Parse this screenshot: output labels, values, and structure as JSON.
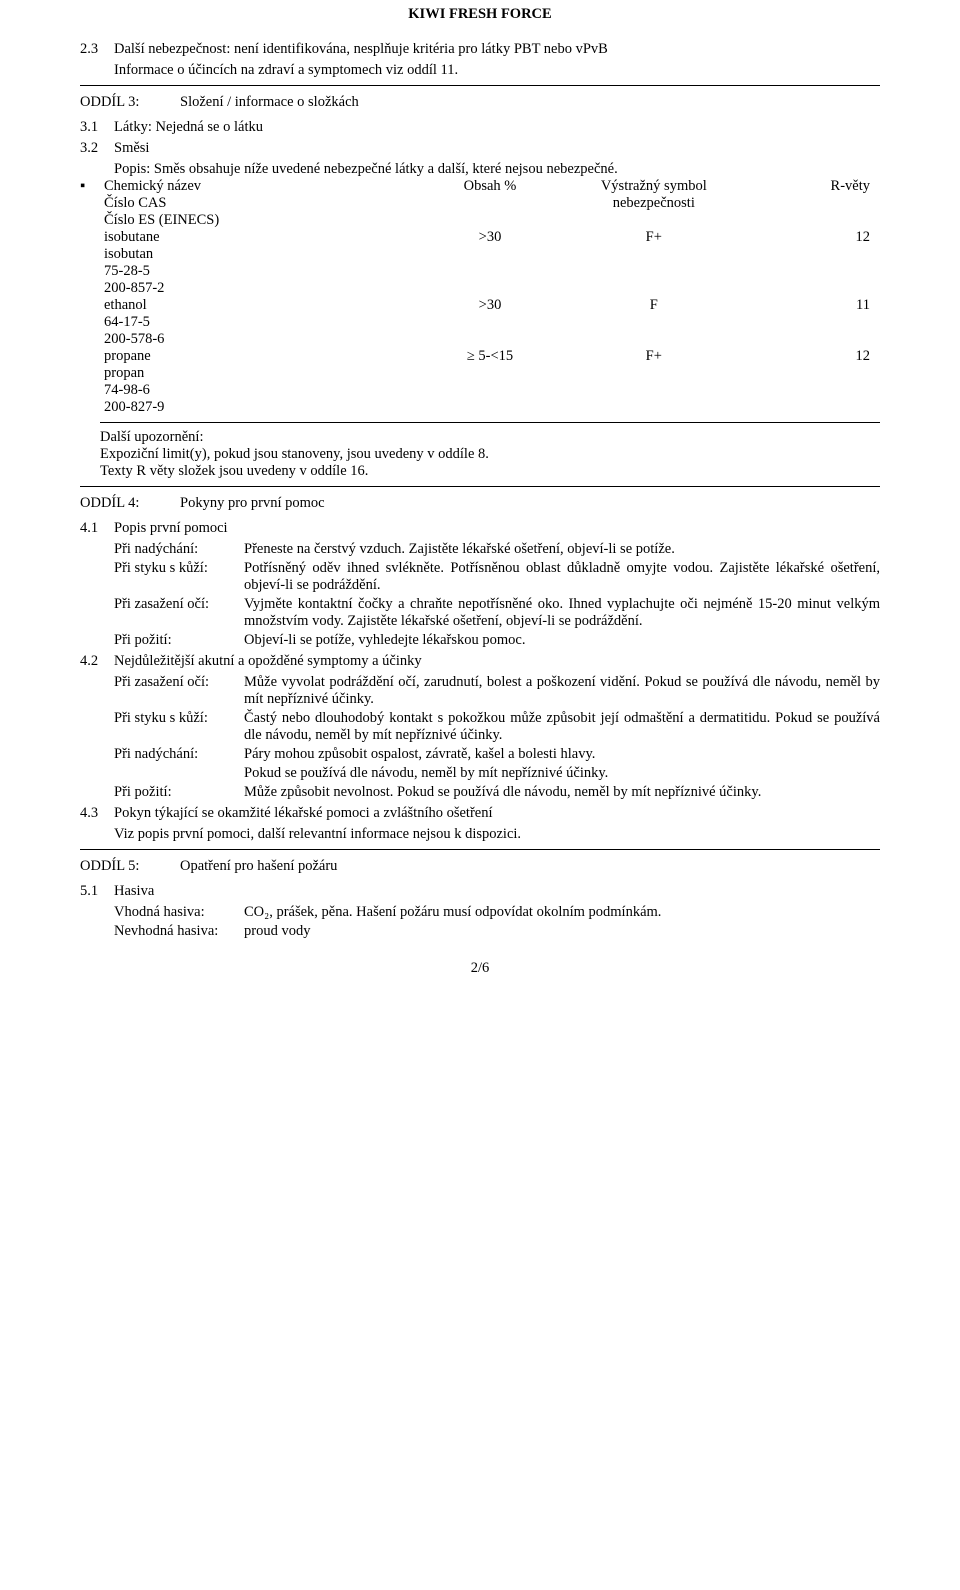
{
  "title": "KIWI FRESH FORCE",
  "s23_num": "2.3",
  "s23_text": "Další nebezpečnost: není identifikována, nesplňuje kritéria pro látky PBT nebo vPvB",
  "s23_sub": "Informace o účincích na zdraví a symptomech viz oddíl 11.",
  "oddil3_label": "ODDÍL 3:",
  "oddil3_title": "Složení / informace o složkách",
  "s31_num": "3.1",
  "s31_text": "Látky: Nejedná se o látku",
  "s32_num": "3.2",
  "s32_title": "Směsi",
  "s32_popis": "Popis: Směs obsahuje níže uvedené nebezpečné látky a další, které nejsou nebezpečné.",
  "bullet": "▪",
  "hdr_chem": "Chemický název",
  "hdr_obsah": "Obsah %",
  "hdr_sym1": "Výstražný symbol",
  "hdr_sym2": "nebezpečnosti",
  "hdr_r": "R-věty",
  "hdr_cas": "Číslo CAS",
  "hdr_es": "Číslo ES (EINECS)",
  "c1_name": "isobutane",
  "c1_cz": "isobutan",
  "c1_cas": "75-28-5",
  "c1_es": "200-857-2",
  "c1_obsah": ">30",
  "c1_sym": "F+",
  "c1_r": "12",
  "c2_name": "ethanol",
  "c2_cas": "64-17-5",
  "c2_es": "200-578-6",
  "c2_obsah": ">30",
  "c2_sym": "F",
  "c2_r": "11",
  "c3_name": "propane",
  "c3_cz": "propan",
  "c3_cas": "74-98-6",
  "c3_es": "200-827-9",
  "c3_obsah": "≥ 5-<15",
  "c3_sym": "F+",
  "c3_r": "12",
  "s32_up_title": "Další upozornění:",
  "s32_up1": "Expoziční limit(y), pokud jsou stanoveny, jsou uvedeny v oddíle 8.",
  "s32_up2": "Texty R věty složek jsou uvedeny v oddíle 16.",
  "oddil4_label": "ODDÍL 4:",
  "oddil4_title": "Pokyny pro první pomoc",
  "s41_num": "4.1",
  "s41_title": "Popis první pomoci",
  "s41_a_term": "Při nadýchání:",
  "s41_a_val": "Přeneste na čerstvý vzduch. Zajistěte lékařské ošetření, objeví-li se potíže.",
  "s41_b_term": "Při styku s kůží:",
  "s41_b_val": "Potřísněný oděv ihned svlékněte. Potřísněnou oblast důkladně omyjte vodou. Zajistěte lékařské ošetření, objeví-li se podráždění.",
  "s41_c_term": "Při zasažení očí:",
  "s41_c_val": "Vyjměte kontaktní čočky a chraňte nepotřísněné oko. Ihned vyplachujte oči nejméně 15-20 minut velkým množstvím vody. Zajistěte lékařské ošetření, objeví-li se podráždění.",
  "s41_d_term": "Při požití:",
  "s41_d_val": "Objeví-li se potíže, vyhledejte lékařskou pomoc.",
  "s42_num": "4.2",
  "s42_title": "Nejdůležitější akutní a opožděné symptomy a účinky",
  "s42_a_term": "Při zasažení očí:",
  "s42_a_val": "Může vyvolat podráždění očí, zarudnutí, bolest a poškození vidění. Pokud se používá dle návodu, neměl by mít nepříznivé účinky.",
  "s42_b_term": "Při styku s kůží:",
  "s42_b_val": "Častý nebo dlouhodobý kontakt s pokožkou může způsobit její odmaštění a dermatitidu. Pokud se používá dle návodu, neměl by mít nepříznivé účinky.",
  "s42_c_term": "Při nadýchání:",
  "s42_c_val": "Páry mohou způsobit ospalost, závratě, kašel a bolesti hlavy.",
  "s42_c_val2": "Pokud se používá dle návodu, neměl by mít nepříznivé účinky.",
  "s42_d_term": "Při požití:",
  "s42_d_val": "Může způsobit nevolnost. Pokud se používá dle návodu, neměl by mít nepříznivé účinky.",
  "s43_num": "4.3",
  "s43_title": "Pokyn týkající se okamžité lékařské pomoci a zvláštního ošetření",
  "s43_body": "Viz popis první pomoci, další relevantní informace nejsou k dispozici.",
  "oddil5_label": "ODDÍL 5:",
  "oddil5_title": "Opatření pro hašení požáru",
  "s51_num": "5.1",
  "s51_title": "Hasiva",
  "s51_a_term": "Vhodná hasiva:",
  "s51_a_val": "CO₂, prášek, pěna. Hašení požáru musí odpovídat okolním podmínkám.",
  "s51_b_term": "Nevhodná hasiva:",
  "s51_b_val": "proud vody",
  "footer": "2/6"
}
